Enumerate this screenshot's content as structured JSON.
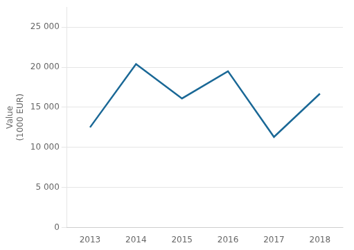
{
  "chart_data": {
    "type": "line",
    "ylabel": [
      "Value",
      "(1000 EUR)"
    ],
    "x": [
      2013,
      2014,
      2015,
      2016,
      2017,
      2018
    ],
    "values": [
      12500,
      20400,
      16100,
      19500,
      11300,
      16700
    ],
    "color": "#1a6896",
    "xlim": [
      2012.5,
      2018.5
    ],
    "xticks": [
      2013,
      2014,
      2015,
      2016,
      2017,
      2018
    ],
    "ylim": [
      0,
      27500
    ],
    "yticks": [
      0,
      {
        "value": 5000,
        "label": "5 000"
      },
      {
        "value": 10000,
        "label": "10 000"
      },
      {
        "value": 15000,
        "label": "15 000"
      },
      {
        "value": 20000,
        "label": "20 000"
      },
      {
        "value": 25000,
        "label": "25 000"
      }
    ],
    "grid": true
  }
}
